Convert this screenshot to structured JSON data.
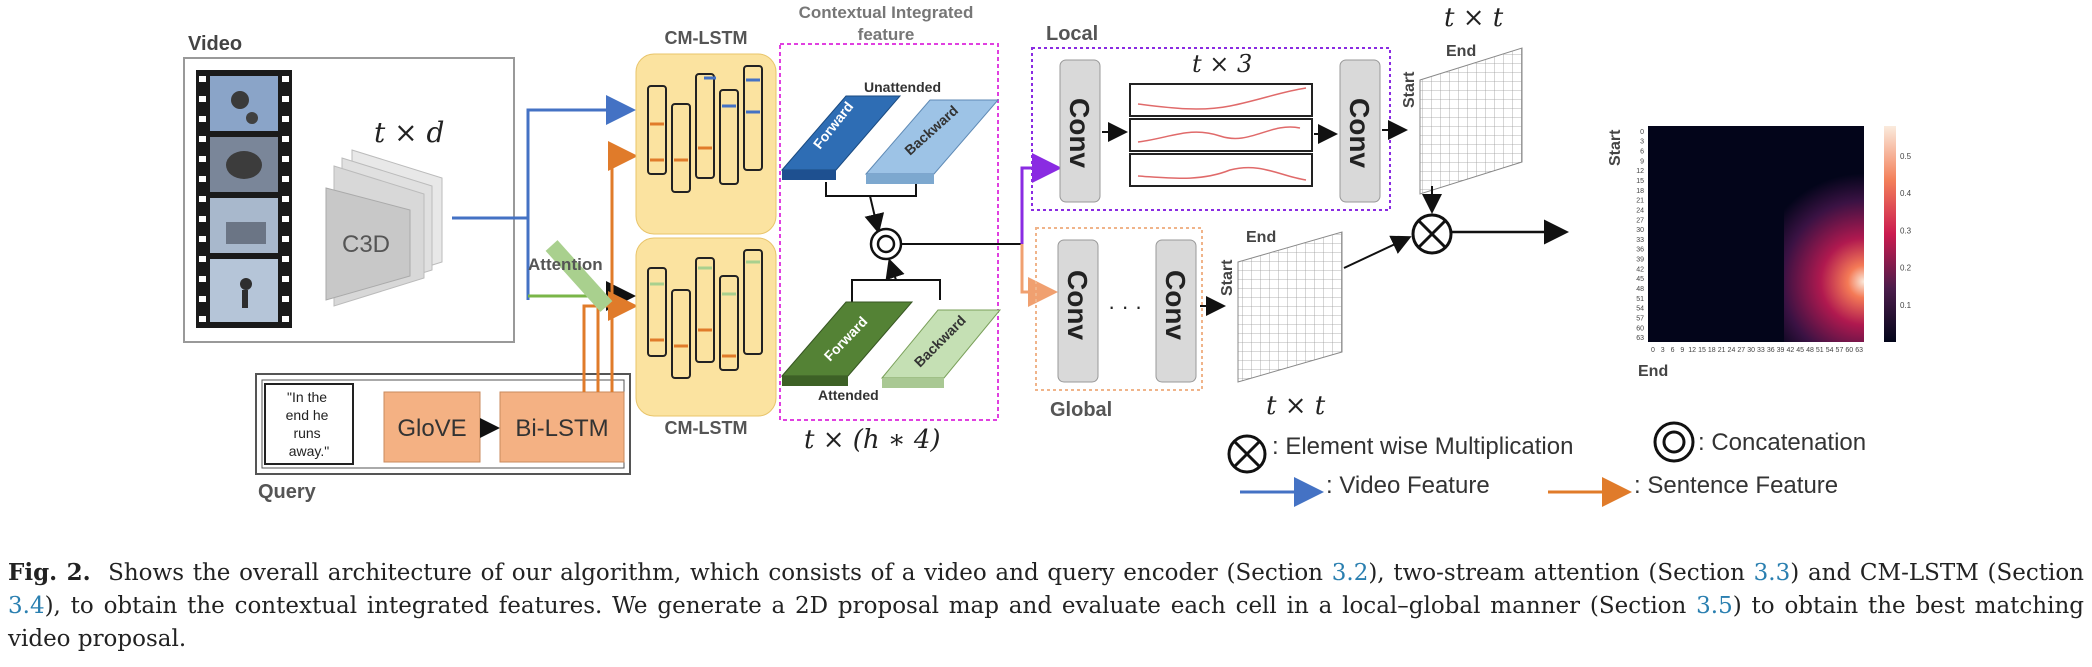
{
  "diagram": {
    "video_label": "Video",
    "query_label": "Query",
    "c3d_label": "C3D",
    "video_dim": "t × d",
    "attention_label": "Attention",
    "query_text_lines": [
      "\"In the",
      "end he",
      "runs",
      "away.\""
    ],
    "glove_label": "GloVE",
    "bilstm_label": "Bi-LSTM",
    "cmlstm_top_label": "CM-LSTM",
    "cmlstm_bottom_label": "CM-LSTM",
    "cif_label_line1": "Contextual Integrated",
    "cif_label_line2": "feature",
    "unattended_label": "Unattended",
    "attended_label": "Attended",
    "forward_label": "Forward",
    "backward_label": "Backward",
    "cif_dim": "t × (h ∗ 4)",
    "local_label": "Local",
    "global_label": "Global",
    "conv_label": "Conv",
    "ellipsis": "· · ·",
    "local_dim": "t × 3",
    "map_top_dim": "t × t",
    "map_global_dim": "t × t",
    "end_label": "End",
    "start_label": "Start",
    "legend": {
      "mult": ": Element wise Multiplication",
      "concat": ": Concatenation",
      "video_feat": ": Video Feature",
      "sentence_feat": ": Sentence Feature"
    },
    "colors": {
      "video_arrow": "#4472c4",
      "sentence_arrow": "#e07b2a",
      "local_box": "#8a2be2",
      "global_box": "#f0b48a",
      "cif_box": "#e040e0",
      "lstm_bg": "#fbe3a0",
      "query_block": "#f4b183"
    }
  },
  "heatmap": {
    "y_axis_label": "Start",
    "x_axis_label": "End",
    "ticks": [
      "0",
      "3",
      "6",
      "9",
      "12",
      "15",
      "18",
      "21",
      "24",
      "27",
      "30",
      "33",
      "36",
      "39",
      "42",
      "45",
      "48",
      "51",
      "54",
      "57",
      "60",
      "63"
    ],
    "colorbar_ticks": [
      "0.5",
      "0.4",
      "0.3",
      "0.2",
      "0.1"
    ],
    "colormap": "rocket (black-red-white)"
  },
  "caption": {
    "fig_label": "Fig. 2.",
    "t1": "Shows the overall architecture of our algorithm, which consists of a video and query encoder (Section ",
    "r1": "3.2",
    "t2": "), two-stream attention (Section ",
    "r2": "3.3",
    "t3": ") and CM-LSTM (Section ",
    "r3": "3.4",
    "t4": "), to obtain the contextual integrated features. We generate a 2D proposal map and evaluate each cell in a local–global manner (Section ",
    "r4": "3.5",
    "t5": ") to obtain the best matching video proposal."
  }
}
